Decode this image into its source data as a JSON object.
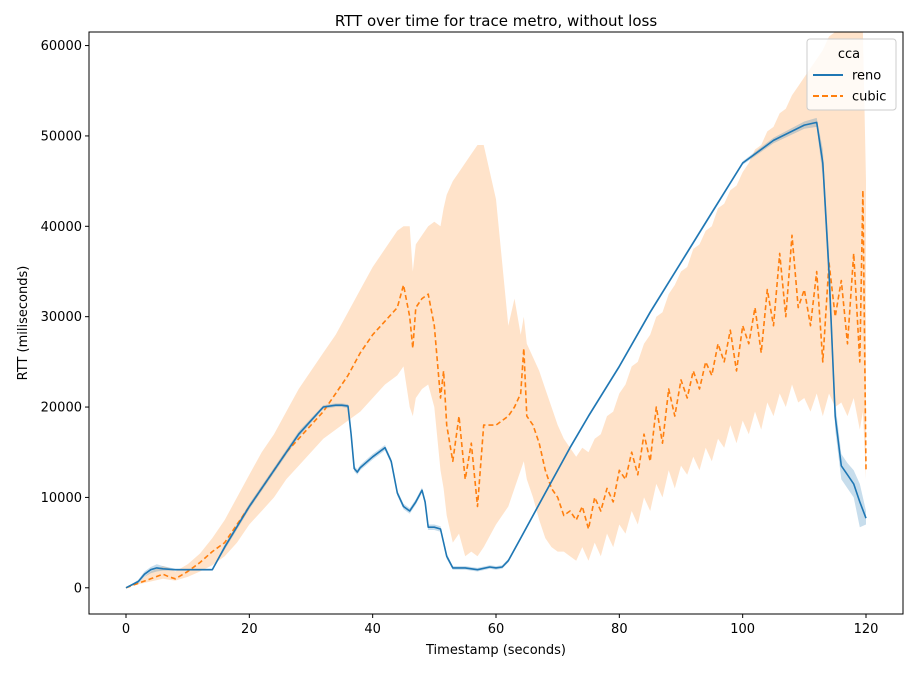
{
  "chart_data": {
    "type": "line",
    "title": "RTT over time for trace metro, without loss",
    "xlabel": "Timestamp (seconds)",
    "ylabel": "RTT (miliseconds)",
    "xlim": [
      -6,
      126
    ],
    "ylim": [
      -2900,
      61500
    ],
    "xticks": [
      0,
      20,
      40,
      60,
      80,
      100,
      120
    ],
    "yticks": [
      0,
      10000,
      20000,
      30000,
      40000,
      50000,
      60000
    ],
    "grid": false,
    "legend": {
      "title": "cca",
      "placement": "top-right",
      "entries": [
        {
          "label": "reno",
          "color": "#1f77b4",
          "style": "solid"
        },
        {
          "label": "cubic",
          "color": "#ff7f0e",
          "style": "dashed"
        }
      ]
    },
    "series": [
      {
        "name": "reno",
        "color": "#1f77b4",
        "style": "solid",
        "x": [
          0,
          2,
          3,
          4,
          5,
          6,
          8,
          10,
          12,
          14,
          16,
          20,
          24,
          28,
          32,
          34,
          35,
          36,
          36.5,
          37,
          37.5,
          38,
          40,
          42,
          43,
          44,
          45,
          46,
          47,
          48,
          48.5,
          49,
          50,
          51,
          52,
          53,
          55,
          57,
          59,
          60,
          61,
          62,
          64,
          66,
          68,
          70,
          72,
          75,
          80,
          85,
          90,
          95,
          100,
          105,
          110,
          112,
          113,
          114,
          115,
          116,
          117,
          118,
          119,
          120
        ],
        "y": [
          0,
          700,
          1500,
          2000,
          2200,
          2100,
          2000,
          2000,
          2000,
          2000,
          4500,
          9000,
          13000,
          17000,
          20000,
          20200,
          20200,
          20100,
          17000,
          13200,
          12800,
          13300,
          14500,
          15500,
          14000,
          10500,
          9000,
          8500,
          9500,
          10800,
          9500,
          6700,
          6700,
          6500,
          3500,
          2200,
          2200,
          2000,
          2300,
          2200,
          2300,
          3000,
          5500,
          8000,
          10500,
          13000,
          15500,
          19000,
          24500,
          30500,
          36000,
          41500,
          47000,
          49500,
          51200,
          51500,
          47000,
          35000,
          19000,
          13500,
          12500,
          11500,
          9500,
          7700
        ],
        "ci_lower": [
          0,
          500,
          1200,
          1600,
          1800,
          1900,
          1900,
          1900,
          1900,
          1900,
          4200,
          8700,
          12700,
          16700,
          19800,
          20000,
          20000,
          19900,
          16700,
          12900,
          12500,
          13000,
          14200,
          15200,
          13700,
          10200,
          8700,
          8200,
          9200,
          10500,
          9200,
          6400,
          6400,
          6200,
          3200,
          2000,
          2000,
          1800,
          2100,
          2000,
          2100,
          2800,
          5300,
          7800,
          10300,
          12800,
          15300,
          18800,
          24300,
          30300,
          35800,
          41300,
          46800,
          49200,
          50800,
          51000,
          45500,
          33000,
          17500,
          12000,
          11000,
          10000,
          6700,
          7000
        ],
        "ci_upper": [
          0,
          900,
          1800,
          2300,
          2600,
          2400,
          2100,
          2100,
          2100,
          2100,
          4800,
          9300,
          13300,
          17300,
          20200,
          20400,
          20400,
          20300,
          17300,
          13500,
          13100,
          13600,
          14800,
          15800,
          14300,
          10800,
          9300,
          8800,
          9800,
          11100,
          9800,
          7000,
          7000,
          6800,
          3800,
          2400,
          2400,
          2200,
          2500,
          2400,
          2500,
          3200,
          5700,
          8200,
          10700,
          13200,
          15700,
          19200,
          24700,
          30700,
          36200,
          41700,
          47200,
          49800,
          51600,
          52000,
          48500,
          37000,
          20500,
          14800,
          13800,
          13000,
          11500,
          8500
        ]
      },
      {
        "name": "cubic",
        "color": "#ff7f0e",
        "style": "dashed",
        "x": [
          0,
          2,
          4,
          6,
          7,
          8,
          10,
          12,
          14,
          16,
          18,
          20,
          22,
          24,
          26,
          28,
          30,
          32,
          34,
          36,
          38,
          40,
          42,
          44,
          45,
          46,
          46.5,
          47,
          48,
          49,
          50,
          51,
          51.5,
          52,
          53,
          54,
          55,
          56,
          57,
          58,
          60,
          62,
          63,
          64,
          64.5,
          65,
          66,
          67,
          68,
          69,
          70,
          71,
          72,
          73,
          74,
          75,
          76,
          77,
          78,
          79,
          80,
          81,
          82,
          83,
          84,
          85,
          86,
          87,
          88,
          89,
          90,
          91,
          92,
          93,
          94,
          95,
          96,
          97,
          98,
          99,
          100,
          101,
          102,
          103,
          104,
          105,
          106,
          107,
          108,
          109,
          110,
          111,
          112,
          113,
          114,
          115,
          116,
          117,
          118,
          119,
          119.5,
          120
        ],
        "y": [
          0,
          500,
          1000,
          1500,
          1200,
          1000,
          1800,
          2800,
          4000,
          5000,
          7000,
          9000,
          11000,
          13000,
          15000,
          16500,
          18000,
          19500,
          21500,
          23500,
          26000,
          28000,
          29500,
          31000,
          33500,
          30000,
          26500,
          31000,
          32000,
          32500,
          29000,
          21000,
          24000,
          18000,
          14000,
          19000,
          12000,
          16000,
          9000,
          18000,
          18000,
          19000,
          20000,
          21500,
          26500,
          19000,
          18000,
          16000,
          13000,
          11000,
          10000,
          8000,
          8500,
          7500,
          9000,
          6500,
          10000,
          8500,
          11000,
          9500,
          13000,
          12000,
          15000,
          12500,
          17000,
          14000,
          20000,
          16000,
          22000,
          19000,
          23000,
          21000,
          24000,
          22000,
          25000,
          23500,
          27000,
          25000,
          28500,
          24000,
          29000,
          27000,
          31000,
          26000,
          33000,
          29000,
          37000,
          30000,
          39000,
          31000,
          33000,
          29000,
          35000,
          25000,
          36000,
          30000,
          34000,
          27000,
          37000,
          25000,
          44000,
          13000
        ],
        "ci_lower": [
          0,
          400,
          700,
          1000,
          900,
          800,
          1200,
          1800,
          2500,
          3500,
          5000,
          7000,
          8500,
          10000,
          12000,
          13500,
          15000,
          16500,
          17500,
          18500,
          19500,
          21000,
          22500,
          23500,
          24500,
          20000,
          19000,
          21000,
          22000,
          22500,
          20000,
          13000,
          11000,
          8000,
          5000,
          6000,
          3500,
          4000,
          3500,
          4500,
          7000,
          9000,
          11000,
          13000,
          14000,
          12000,
          10000,
          7500,
          5500,
          4500,
          4000,
          4000,
          3500,
          3000,
          4500,
          3000,
          5000,
          3500,
          6000,
          4500,
          7000,
          6000,
          8500,
          7000,
          10000,
          8500,
          11500,
          10000,
          13000,
          11000,
          13500,
          12500,
          14500,
          13000,
          15500,
          14000,
          16500,
          15500,
          18000,
          16000,
          18500,
          17000,
          19500,
          17500,
          20500,
          19000,
          21500,
          20000,
          22500,
          20500,
          21000,
          19500,
          21500,
          19000,
          21500,
          20000,
          20500,
          19000,
          21000,
          17500,
          19500,
          12000
        ],
        "ci_upper": [
          0,
          600,
          1800,
          2400,
          2200,
          1800,
          2600,
          3800,
          5500,
          7500,
          10000,
          12500,
          15000,
          17000,
          19500,
          22000,
          24000,
          26000,
          28000,
          30500,
          33000,
          35500,
          37500,
          39500,
          40000,
          40000,
          35000,
          38000,
          39000,
          40000,
          40500,
          40000,
          42000,
          43500,
          45000,
          46000,
          47000,
          48000,
          49000,
          49000,
          43000,
          29000,
          32000,
          28000,
          30000,
          27000,
          25500,
          24000,
          22000,
          20000,
          18000,
          16500,
          15500,
          14500,
          15500,
          15000,
          16500,
          17000,
          19000,
          19500,
          21500,
          22500,
          24500,
          25000,
          27000,
          28000,
          30000,
          30500,
          32500,
          33500,
          35000,
          35500,
          37500,
          38000,
          39500,
          40000,
          42000,
          42500,
          44000,
          44500,
          46000,
          47000,
          48500,
          49000,
          50500,
          51000,
          52500,
          53000,
          54500,
          55500,
          56500,
          57500,
          58500,
          59500,
          61000,
          61500,
          61500,
          61500,
          61500,
          61500,
          61500,
          45000
        ]
      }
    ]
  }
}
